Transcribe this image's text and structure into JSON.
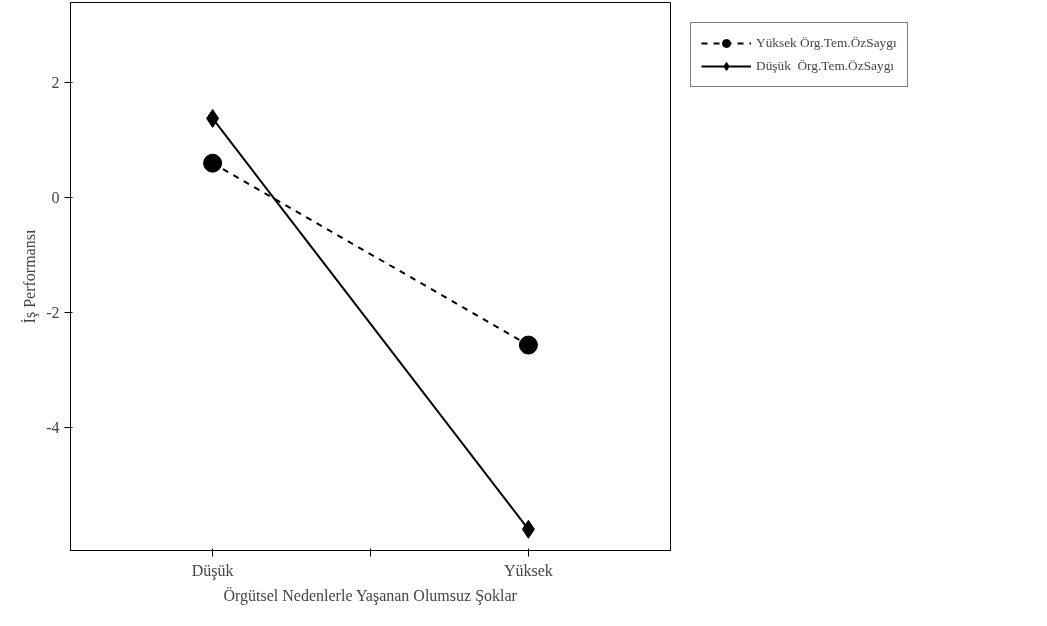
{
  "chart_data": {
    "type": "line",
    "xlabel": "Örgütsel Nedenlerle Yaşanan Olumsuz Şoklar",
    "ylabel": "İş Performansı",
    "categories": [
      "Düşük",
      "Yüksek"
    ],
    "ylim": [
      -6.15,
      3.4
    ],
    "yticks": [
      2,
      0,
      -2,
      -4
    ],
    "grid": false,
    "legend": "top right",
    "series": [
      {
        "name": "Yüksek Örg.Tem.ÖzSaygı",
        "color": "#000000",
        "values": [
          0.6,
          -2.57
        ],
        "marker": "circle",
        "line_style": "dashed"
      },
      {
        "name": "Düşük  Örg.Tem.ÖzSaygı",
        "color": "#000000",
        "values": [
          1.38,
          -5.78
        ],
        "marker": "diamond",
        "line_style": "solid"
      }
    ]
  }
}
